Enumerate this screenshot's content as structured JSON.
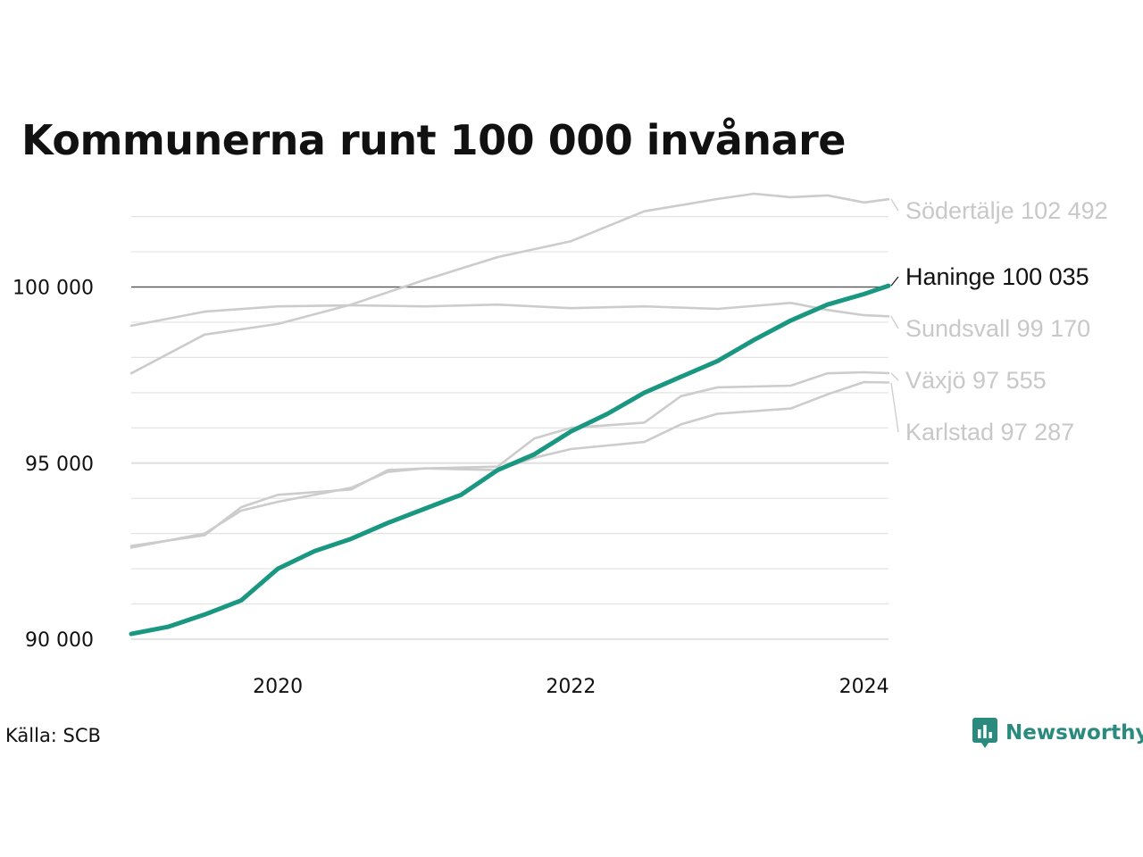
{
  "title": "Kommunerna runt 100 000 invånare",
  "source": "Källa: SCB",
  "brand": {
    "name": "Newsworthy",
    "color": "#2a8a7d",
    "icon": "bar-chart-icon"
  },
  "colors": {
    "highlight": "#1a9781",
    "muted": "#cccccc",
    "grid": "#e3e3e3",
    "reference": "#555555"
  },
  "chart_data": {
    "type": "line",
    "title": "Kommunerna runt 100 000 invånare",
    "xlabel": "",
    "ylabel": "",
    "x_range": [
      "2019-01",
      "2024-03"
    ],
    "ylim": [
      90000,
      102700
    ],
    "y_ticks": [
      {
        "value": 90000,
        "label": "90 000"
      },
      {
        "value": 95000,
        "label": "95 000"
      },
      {
        "value": 100000,
        "label": "100 000"
      }
    ],
    "x_ticks": [
      {
        "value": "2020-01",
        "label": "2020"
      },
      {
        "value": "2022-01",
        "label": "2022"
      },
      {
        "value": "2024-01",
        "label": "2024"
      }
    ],
    "reference_line": 100000,
    "grid": true,
    "legend": "direct labels at right",
    "series": [
      {
        "name": "Södertälje",
        "end_label": "Södertälje 102 492",
        "highlight": false,
        "points": [
          [
            "2019-01",
            97550
          ],
          [
            "2019-07",
            98650
          ],
          [
            "2020-01",
            98950
          ],
          [
            "2020-07",
            99500
          ],
          [
            "2021-01",
            100200
          ],
          [
            "2021-07",
            100850
          ],
          [
            "2022-01",
            101300
          ],
          [
            "2022-07",
            102150
          ],
          [
            "2023-01",
            102500
          ],
          [
            "2023-04",
            102650
          ],
          [
            "2023-07",
            102550
          ],
          [
            "2023-10",
            102600
          ],
          [
            "2024-01",
            102400
          ],
          [
            "2024-03",
            102492
          ]
        ]
      },
      {
        "name": "Sundsvall",
        "end_label": "Sundsvall  99 170",
        "highlight": false,
        "points": [
          [
            "2019-01",
            98900
          ],
          [
            "2019-07",
            99300
          ],
          [
            "2020-01",
            99450
          ],
          [
            "2020-07",
            99480
          ],
          [
            "2021-01",
            99450
          ],
          [
            "2021-07",
            99500
          ],
          [
            "2022-01",
            99400
          ],
          [
            "2022-07",
            99450
          ],
          [
            "2023-01",
            99380
          ],
          [
            "2023-07",
            99550
          ],
          [
            "2023-10",
            99350
          ],
          [
            "2024-01",
            99200
          ],
          [
            "2024-03",
            99170
          ]
        ]
      },
      {
        "name": "Växjö",
        "end_label": "Växjö  97 555",
        "highlight": false,
        "points": [
          [
            "2019-01",
            92650
          ],
          [
            "2019-07",
            92950
          ],
          [
            "2019-10",
            93750
          ],
          [
            "2020-01",
            94100
          ],
          [
            "2020-07",
            94250
          ],
          [
            "2020-10",
            94800
          ],
          [
            "2021-01",
            94850
          ],
          [
            "2021-07",
            94900
          ],
          [
            "2021-10",
            95700
          ],
          [
            "2022-01",
            96000
          ],
          [
            "2022-07",
            96150
          ],
          [
            "2022-10",
            96900
          ],
          [
            "2023-01",
            97150
          ],
          [
            "2023-07",
            97200
          ],
          [
            "2023-10",
            97550
          ],
          [
            "2024-01",
            97580
          ],
          [
            "2024-03",
            97555
          ]
        ]
      },
      {
        "name": "Karlstad",
        "end_label": "Karlstad  97 287",
        "highlight": false,
        "points": [
          [
            "2019-01",
            92600
          ],
          [
            "2019-07",
            93000
          ],
          [
            "2019-10",
            93650
          ],
          [
            "2020-01",
            93900
          ],
          [
            "2020-07",
            94300
          ],
          [
            "2020-10",
            94750
          ],
          [
            "2021-01",
            94850
          ],
          [
            "2021-07",
            94800
          ],
          [
            "2021-10",
            95150
          ],
          [
            "2022-01",
            95400
          ],
          [
            "2022-07",
            95600
          ],
          [
            "2022-10",
            96100
          ],
          [
            "2023-01",
            96400
          ],
          [
            "2023-07",
            96550
          ],
          [
            "2023-10",
            96950
          ],
          [
            "2024-01",
            97300
          ],
          [
            "2024-03",
            97287
          ]
        ]
      },
      {
        "name": "Haninge",
        "end_label": "Haninge 100 035",
        "highlight": true,
        "points": [
          [
            "2019-01",
            90150
          ],
          [
            "2019-04",
            90350
          ],
          [
            "2019-07",
            90700
          ],
          [
            "2019-10",
            91100
          ],
          [
            "2020-01",
            92000
          ],
          [
            "2020-04",
            92500
          ],
          [
            "2020-07",
            92850
          ],
          [
            "2020-10",
            93300
          ],
          [
            "2021-01",
            93700
          ],
          [
            "2021-04",
            94100
          ],
          [
            "2021-07",
            94800
          ],
          [
            "2021-10",
            95250
          ],
          [
            "2022-01",
            95900
          ],
          [
            "2022-04",
            96400
          ],
          [
            "2022-07",
            97000
          ],
          [
            "2022-10",
            97450
          ],
          [
            "2023-01",
            97900
          ],
          [
            "2023-04",
            98500
          ],
          [
            "2023-07",
            99050
          ],
          [
            "2023-10",
            99500
          ],
          [
            "2024-01",
            99800
          ],
          [
            "2024-03",
            100035
          ]
        ]
      }
    ]
  }
}
